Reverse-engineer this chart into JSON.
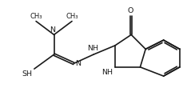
{
  "background_color": "#ffffff",
  "line_color": "#1a1a1a",
  "lw": 1.2,
  "figsize": [
    2.34,
    1.25
  ],
  "dpi": 100,
  "xlim": [
    0.0,
    10.0
  ],
  "ylim": [
    0.0,
    5.5
  ],
  "fs_large": 6.8,
  "fs_small": 6.0
}
